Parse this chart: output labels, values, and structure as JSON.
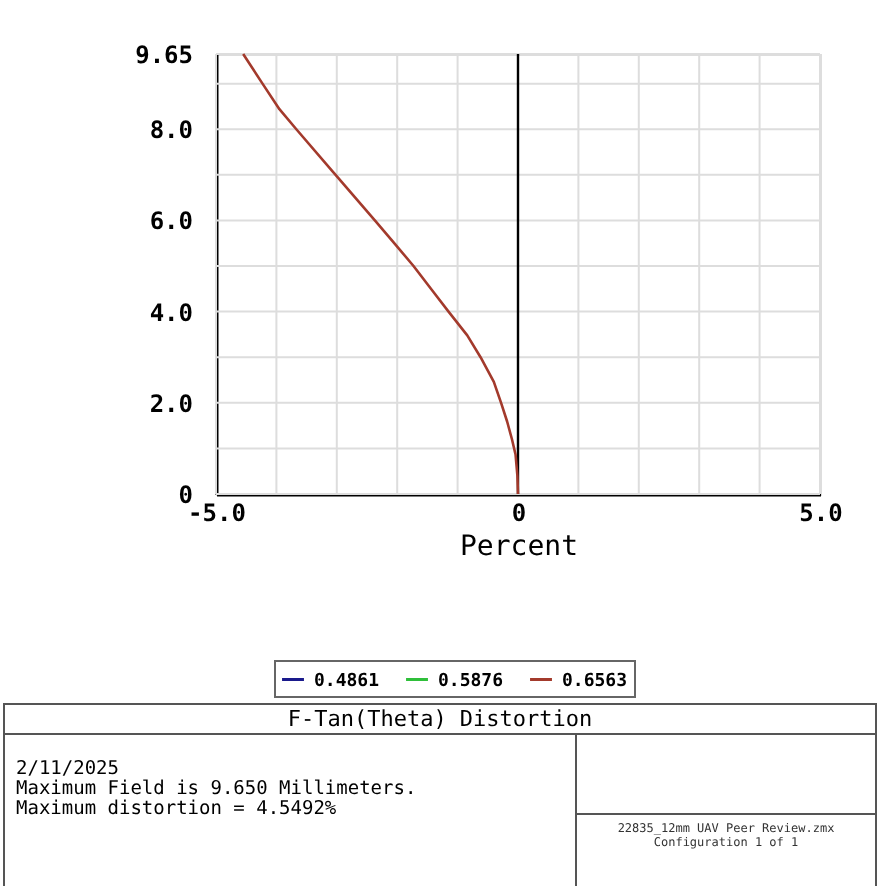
{
  "chart_data": {
    "type": "line",
    "title": "F-Tan(Theta) Distortion",
    "xlabel": "Percent",
    "xlim": [
      -5,
      5
    ],
    "xticks": [
      {
        "value": -5,
        "label": "-5.0"
      },
      {
        "value": -4,
        "label": null
      },
      {
        "value": -3,
        "label": null
      },
      {
        "value": -2,
        "label": null
      },
      {
        "value": -1,
        "label": null
      },
      0,
      {
        "value": 1,
        "label": null
      },
      {
        "value": 2,
        "label": null
      },
      {
        "value": 3,
        "label": null
      },
      {
        "value": 4,
        "label": null
      },
      {
        "value": 5,
        "label": "5.0"
      }
    ],
    "ylim": [
      0,
      9.65
    ],
    "yticks": [
      0,
      {
        "value": 1,
        "label": null
      },
      {
        "value": 2,
        "label": "2.0"
      },
      {
        "value": 3,
        "label": null
      },
      {
        "value": 4,
        "label": "4.0"
      },
      {
        "value": 5,
        "label": null
      },
      {
        "value": 6,
        "label": "6.0"
      },
      {
        "value": 7,
        "label": null
      },
      {
        "value": 8,
        "label": "8.0"
      },
      {
        "value": 9,
        "label": null
      },
      9.65
    ],
    "x": [
      0,
      -0.01,
      -0.04,
      -0.1,
      -0.18,
      -0.28,
      -0.4,
      -0.62,
      -0.84,
      -1.15,
      -1.4,
      -1.73,
      -2.06,
      -2.37,
      -3.02,
      -3.06,
      -3.67,
      -3.95,
      -4.23,
      -4.55
    ],
    "series": [
      {
        "name": "0.4861",
        "color": "#1a1a8c",
        "values": [
          null,
          null,
          null,
          null,
          null,
          null,
          null,
          null,
          null,
          null,
          null,
          null,
          null,
          null,
          null,
          null,
          null,
          null,
          null,
          null
        ]
      },
      {
        "name": "0.5876",
        "color": "#2fbf3a",
        "values": [
          null,
          null,
          null,
          null,
          null,
          null,
          null,
          null,
          null,
          null,
          null,
          null,
          null,
          null,
          null,
          null,
          null,
          null,
          null,
          null
        ]
      },
      {
        "name": "0.6563",
        "color": "#a33a2c",
        "values": [
          0,
          0.4,
          0.86,
          1.2,
          1.59,
          2.0,
          2.46,
          3.0,
          3.48,
          4.0,
          4.43,
          5.0,
          5.52,
          6.0,
          7.0,
          7.06,
          8.0,
          8.44,
          9.0,
          9.65
        ]
      }
    ],
    "ref_lines": [
      {
        "axis": "x",
        "value": 0,
        "color": "#000000"
      }
    ],
    "grid": true,
    "legend": "bottom",
    "line_style": "solid",
    "marker": "none",
    "annotations": [
      "2/11/2025",
      "Maximum Field is 9.650 Millimeters.",
      "Maximum distortion = 4.5492%",
      "22835_12mm UAV Peer Review.zmx",
      "Configuration 1 of 1"
    ]
  }
}
